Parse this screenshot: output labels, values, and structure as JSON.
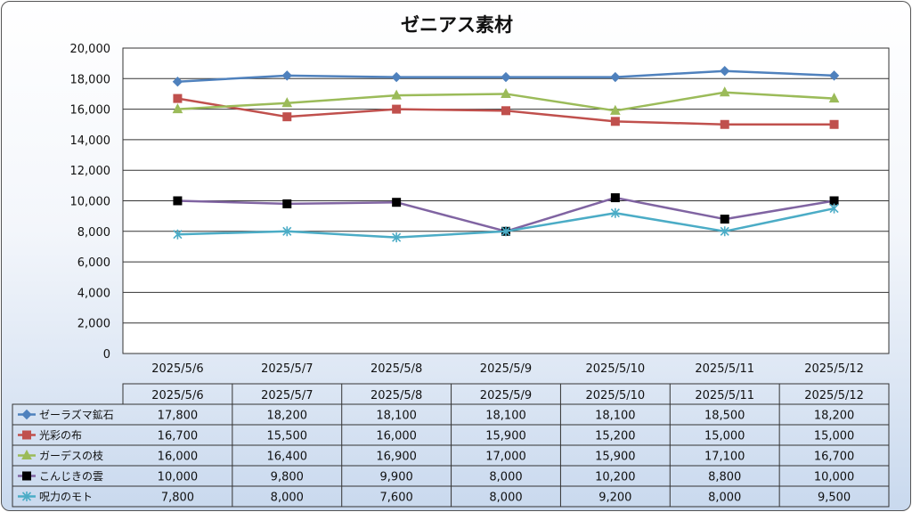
{
  "chart_data": {
    "type": "line",
    "title": "ゼニアス素材",
    "categories": [
      "2025/5/6",
      "2025/5/7",
      "2025/5/8",
      "2025/5/9",
      "2025/5/10",
      "2025/5/11",
      "2025/5/12"
    ],
    "ylim": [
      0,
      20000
    ],
    "yticks": [
      "0",
      "2,000",
      "4,000",
      "6,000",
      "8,000",
      "10,000",
      "12,000",
      "14,000",
      "16,000",
      "18,000",
      "20,000"
    ],
    "grid": true,
    "legend": "data-table",
    "series": [
      {
        "name": "ゼーラズマ鉱石",
        "color": "#4F81BD",
        "marker": "diamond",
        "values": [
          17800,
          18200,
          18100,
          18100,
          18100,
          18500,
          18200
        ],
        "labels": [
          "17,800",
          "18,200",
          "18,100",
          "18,100",
          "18,100",
          "18,500",
          "18,200"
        ]
      },
      {
        "name": "光彩の布",
        "color": "#C0504D",
        "marker": "square",
        "values": [
          16700,
          15500,
          16000,
          15900,
          15200,
          15000,
          15000
        ],
        "labels": [
          "16,700",
          "15,500",
          "16,000",
          "15,900",
          "15,200",
          "15,000",
          "15,000"
        ]
      },
      {
        "name": "ガーデスの枝",
        "color": "#9BBB59",
        "marker": "triangle",
        "values": [
          16000,
          16400,
          16900,
          17000,
          15900,
          17100,
          16700
        ],
        "labels": [
          "16,000",
          "16,400",
          "16,900",
          "17,000",
          "15,900",
          "17,100",
          "16,700"
        ]
      },
      {
        "name": "こんじきの雲",
        "color": "#8064A2",
        "markerColor": "#000000",
        "marker": "square",
        "values": [
          10000,
          9800,
          9900,
          8000,
          10200,
          8800,
          10000
        ],
        "labels": [
          "10,000",
          "9,800",
          "9,900",
          "8,000",
          "10,200",
          "8,800",
          "10,000"
        ]
      },
      {
        "name": "呪力のモト",
        "color": "#4BACC6",
        "marker": "star",
        "values": [
          7800,
          8000,
          7600,
          8000,
          9200,
          8000,
          9500
        ],
        "labels": [
          "7,800",
          "8,000",
          "7,600",
          "8,000",
          "9,200",
          "8,000",
          "9,500"
        ]
      }
    ]
  }
}
